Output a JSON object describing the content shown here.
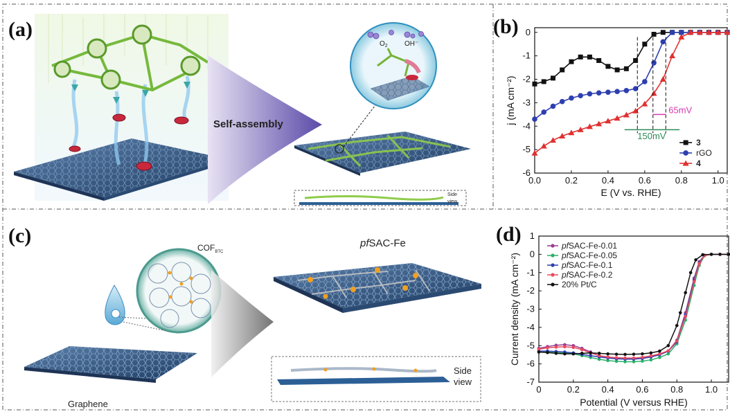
{
  "panels": {
    "a": {
      "label": "(a)",
      "arrow_label": "Self-assembly",
      "ion_o2": "O",
      "ion_o2_sub": "2",
      "ion_oh": "OH⁻",
      "side_view": [
        "Side",
        "view"
      ]
    },
    "b": {
      "label": "(b)"
    },
    "c": {
      "label": "(c)",
      "cof_main": "COF",
      "cof_sub": "BTC",
      "title_italic": "pf",
      "title_rest": "SAC-Fe",
      "graphene": "Graphene",
      "side_view": [
        "Side",
        "view"
      ]
    },
    "d": {
      "label": "(d)"
    }
  },
  "chart_data": [
    {
      "id": "b",
      "type": "line",
      "xlabel": "E (V vs. RHE)",
      "ylabel": "j (mA cm⁻²)",
      "xlim": [
        0,
        1.05
      ],
      "ylim": [
        -6,
        0.2
      ],
      "xticks": [
        "0.0",
        "0.2",
        "0.4",
        "0.6",
        "0.8",
        "1.0"
      ],
      "yticks": [
        "0",
        "-1",
        "-2",
        "-3",
        "-4",
        "-5",
        "-6"
      ],
      "legend_position": "bottom-right",
      "annotations": [
        "65mV",
        "150mV"
      ],
      "series": [
        {
          "name": "3",
          "color": "#111111",
          "marker": "square",
          "x": [
            0.0,
            0.05,
            0.1,
            0.15,
            0.2,
            0.25,
            0.3,
            0.35,
            0.4,
            0.45,
            0.5,
            0.55,
            0.6,
            0.65,
            0.7,
            0.75,
            0.8,
            0.85,
            0.9,
            0.95,
            1.0,
            1.05
          ],
          "y": [
            -2.2,
            -2.1,
            -1.95,
            -1.6,
            -1.25,
            -1.05,
            -1.05,
            -1.2,
            -1.45,
            -1.6,
            -1.55,
            -1.2,
            -0.5,
            -0.08,
            0,
            0,
            0,
            0,
            0,
            0,
            0,
            0
          ]
        },
        {
          "name": "rGO",
          "color": "#2d3fb0",
          "marker": "circle",
          "x": [
            0.0,
            0.05,
            0.1,
            0.15,
            0.2,
            0.25,
            0.3,
            0.35,
            0.4,
            0.45,
            0.5,
            0.55,
            0.6,
            0.65,
            0.7,
            0.75,
            0.8,
            0.85,
            0.9,
            0.95,
            1.0,
            1.05
          ],
          "y": [
            -3.7,
            -3.4,
            -3.15,
            -2.95,
            -2.8,
            -2.7,
            -2.62,
            -2.58,
            -2.55,
            -2.52,
            -2.48,
            -2.4,
            -2.1,
            -1.3,
            -0.4,
            0,
            0,
            0,
            0,
            0,
            0,
            0
          ]
        },
        {
          "name": "4",
          "color": "#e03030",
          "marker": "triangle",
          "x": [
            0.0,
            0.05,
            0.1,
            0.15,
            0.2,
            0.25,
            0.3,
            0.35,
            0.4,
            0.45,
            0.5,
            0.55,
            0.6,
            0.65,
            0.7,
            0.75,
            0.8,
            0.85,
            0.9,
            0.95,
            1.0,
            1.05
          ],
          "y": [
            -5.15,
            -4.85,
            -4.6,
            -4.42,
            -4.28,
            -4.15,
            -4.02,
            -3.9,
            -3.78,
            -3.66,
            -3.52,
            -3.35,
            -3.05,
            -2.6,
            -2.0,
            -1.0,
            -0.2,
            0,
            0,
            0,
            0,
            0
          ]
        }
      ]
    },
    {
      "id": "d",
      "type": "line",
      "xlabel": "Potential (V versus RHE)",
      "ylabel": "Current density (mA cm⁻²)",
      "xlim": [
        0,
        1.1
      ],
      "ylim": [
        -7,
        1
      ],
      "xticks": [
        "0",
        "0.2",
        "0.4",
        "0.6",
        "0.8",
        "1.0"
      ],
      "yticks": [
        "1",
        "0",
        "-1",
        "-2",
        "-3",
        "-4",
        "-5",
        "-6",
        "-7"
      ],
      "legend_position": "top-left",
      "series": [
        {
          "name": "pfSAC-Fe-0.01",
          "name_italic": "pf",
          "name_rest": "SAC-Fe-0.01",
          "color": "#9a3b8f",
          "x": [
            0,
            0.05,
            0.1,
            0.15,
            0.2,
            0.25,
            0.3,
            0.35,
            0.4,
            0.45,
            0.5,
            0.55,
            0.6,
            0.65,
            0.7,
            0.75,
            0.8,
            0.85,
            0.9,
            0.93,
            0.96,
            1.0,
            1.05,
            1.1
          ],
          "y": [
            -5.15,
            -5.05,
            -4.98,
            -4.95,
            -5.0,
            -5.15,
            -5.35,
            -5.55,
            -5.65,
            -5.7,
            -5.72,
            -5.72,
            -5.68,
            -5.6,
            -5.5,
            -5.3,
            -4.7,
            -3.2,
            -1.3,
            -0.4,
            -0.05,
            0,
            0,
            0
          ]
        },
        {
          "name": "pfSAC-Fe-0.05",
          "name_italic": "pf",
          "name_rest": "SAC-Fe-0.05",
          "color": "#2bb06a",
          "x": [
            0,
            0.05,
            0.1,
            0.15,
            0.2,
            0.25,
            0.3,
            0.35,
            0.4,
            0.45,
            0.5,
            0.55,
            0.6,
            0.65,
            0.7,
            0.75,
            0.8,
            0.85,
            0.9,
            0.93,
            0.96,
            1.0,
            1.05,
            1.1
          ],
          "y": [
            -5.35,
            -5.35,
            -5.36,
            -5.4,
            -5.45,
            -5.55,
            -5.65,
            -5.75,
            -5.82,
            -5.86,
            -5.88,
            -5.88,
            -5.85,
            -5.78,
            -5.65,
            -5.45,
            -4.9,
            -3.6,
            -1.7,
            -0.6,
            -0.08,
            0,
            0,
            0
          ]
        },
        {
          "name": "pfSAC-Fe-0.1",
          "name_italic": "pf",
          "name_rest": "SAC-Fe-0.1",
          "color": "#2d3fb0",
          "x": [
            0,
            0.05,
            0.1,
            0.15,
            0.2,
            0.25,
            0.3,
            0.35,
            0.4,
            0.45,
            0.5,
            0.55,
            0.6,
            0.65,
            0.7,
            0.75,
            0.8,
            0.85,
            0.9,
            0.93,
            0.96,
            1.0,
            1.05,
            1.1
          ],
          "y": [
            -5.3,
            -5.3,
            -5.32,
            -5.35,
            -5.4,
            -5.48,
            -5.55,
            -5.62,
            -5.68,
            -5.72,
            -5.74,
            -5.74,
            -5.7,
            -5.62,
            -5.5,
            -5.3,
            -4.8,
            -3.3,
            -1.4,
            -0.45,
            -0.05,
            0,
            0,
            0
          ]
        },
        {
          "name": "pfSAC-Fe-0.2",
          "name_italic": "pf",
          "name_rest": "SAC-Fe-0.2",
          "color": "#e84a5f",
          "x": [
            0,
            0.05,
            0.1,
            0.15,
            0.2,
            0.25,
            0.3,
            0.35,
            0.4,
            0.45,
            0.5,
            0.55,
            0.6,
            0.65,
            0.7,
            0.75,
            0.8,
            0.85,
            0.9,
            0.93,
            0.96,
            1.0,
            1.05,
            1.1
          ],
          "y": [
            -5.2,
            -5.12,
            -5.08,
            -5.06,
            -5.1,
            -5.22,
            -5.4,
            -5.55,
            -5.62,
            -5.66,
            -5.68,
            -5.68,
            -5.64,
            -5.56,
            -5.45,
            -5.28,
            -4.75,
            -3.4,
            -1.5,
            -0.5,
            -0.06,
            0,
            0,
            0
          ]
        },
        {
          "name": "20% Pt/C",
          "color": "#111111",
          "x": [
            0,
            0.05,
            0.1,
            0.15,
            0.2,
            0.25,
            0.3,
            0.35,
            0.4,
            0.45,
            0.5,
            0.55,
            0.6,
            0.65,
            0.7,
            0.75,
            0.8,
            0.82,
            0.85,
            0.88,
            0.91,
            0.95,
            1.0,
            1.05,
            1.1
          ],
          "y": [
            -5.35,
            -5.38,
            -5.42,
            -5.45,
            -5.45,
            -5.42,
            -5.4,
            -5.42,
            -5.45,
            -5.47,
            -5.48,
            -5.47,
            -5.45,
            -5.4,
            -5.3,
            -5.0,
            -3.9,
            -3.2,
            -2.1,
            -1.0,
            -0.3,
            -0.02,
            0,
            0,
            0
          ]
        }
      ]
    }
  ]
}
